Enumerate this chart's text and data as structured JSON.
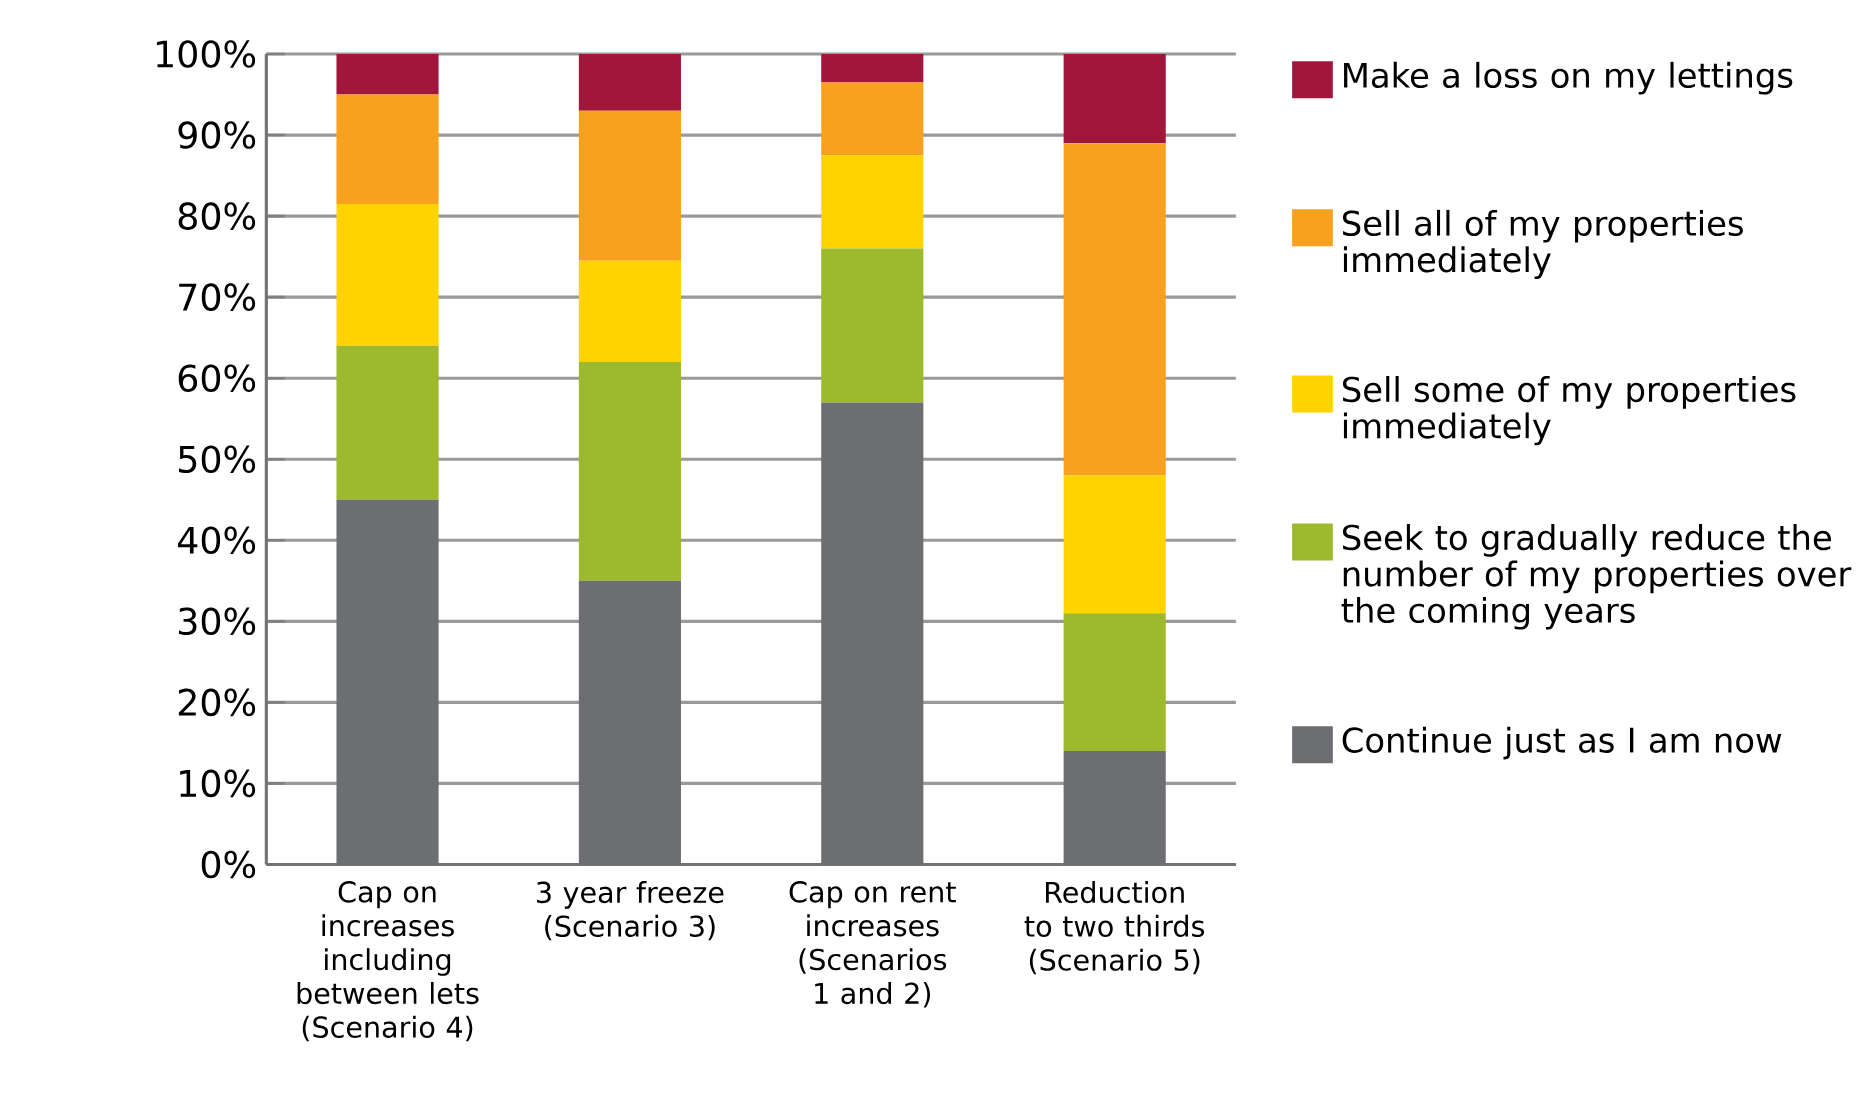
{
  "chart_data": {
    "type": "bar",
    "stacked": true,
    "categories": [
      "Cap on increases including between lets (Scenario 4)",
      "3 year freeze (Scenario 3)",
      "Cap on rent increases (Scenarios 1 and 2)",
      "Reduction to two thirds (Scenario 5)"
    ],
    "series": [
      {
        "name": "Continue just as I am now",
        "color": "#6d6e71",
        "values": [
          45,
          35,
          57,
          14
        ]
      },
      {
        "name": "Seek to gradually reduce the number of my properties over the coming years",
        "color": "#9db92d",
        "values": [
          19,
          27,
          19,
          17
        ]
      },
      {
        "name": "Sell some of my properties immediately",
        "color": "#fed300",
        "values": [
          17.5,
          12.5,
          11.5,
          17
        ]
      },
      {
        "name": "Sell all of my properties immediately",
        "color": "#f8a11e",
        "values": [
          13.5,
          18.5,
          9,
          41
        ]
      },
      {
        "name": "Make a loss on my lettings",
        "color": "#a0173b",
        "values": [
          5,
          7,
          3.5,
          11
        ]
      }
    ],
    "ylim": [
      0,
      100
    ],
    "yticks": [
      {
        "value": 0,
        "label": "0%"
      },
      {
        "value": 10,
        "label": "10%"
      },
      {
        "value": 20,
        "label": "20%"
      },
      {
        "value": 30,
        "label": "30%"
      },
      {
        "value": 40,
        "label": "40%"
      },
      {
        "value": 50,
        "label": "50%"
      },
      {
        "value": 60,
        "label": "60%"
      },
      {
        "value": 70,
        "label": "70%"
      },
      {
        "value": 80,
        "label": "80%"
      },
      {
        "value": 90,
        "label": "90%"
      },
      {
        "value": 100,
        "label": "100%"
      }
    ],
    "grid": "y",
    "legend": "right"
  }
}
